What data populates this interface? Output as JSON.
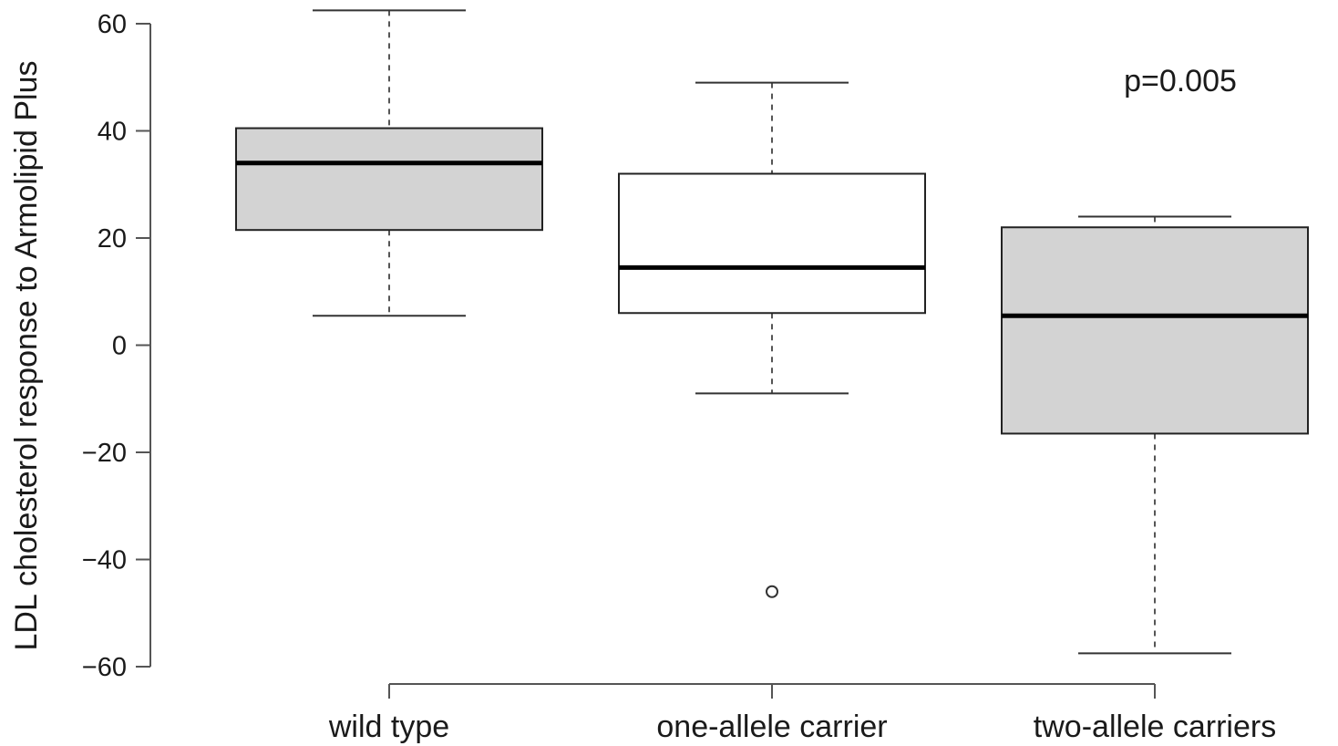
{
  "chart_data": {
    "type": "box",
    "title": "",
    "xlabel": "",
    "ylabel": "LDL cholesterol response to Armolipid Plus",
    "ylim": [
      -60,
      60
    ],
    "yticks": [
      -60,
      -40,
      -20,
      0,
      20,
      40,
      60
    ],
    "ytick_labels": [
      "−60",
      "−40",
      "−20",
      "0",
      "20",
      "40",
      "60"
    ],
    "categories": [
      "wild type",
      "one-allele carrier",
      "two-allele carriers"
    ],
    "boxes": [
      {
        "whisker_low": 5.5,
        "q1": 21.5,
        "median": 34,
        "q3": 40.5,
        "whisker_high": 62.5,
        "outliers": [],
        "fill": "#d3d3d3"
      },
      {
        "whisker_low": -9,
        "q1": 6,
        "median": 14.5,
        "q3": 32,
        "whisker_high": 49,
        "outliers": [
          -46
        ],
        "fill": "#ffffff"
      },
      {
        "whisker_low": -57.5,
        "q1": -16.5,
        "median": 5.5,
        "q3": 22,
        "whisker_high": 24,
        "outliers": [],
        "fill": "#d3d3d3"
      }
    ],
    "annotations": [
      {
        "text": "p=0.005"
      }
    ],
    "grid": false,
    "legend": "none"
  }
}
